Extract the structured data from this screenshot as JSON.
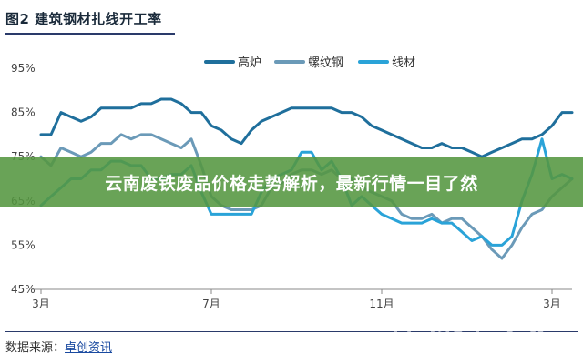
{
  "figure_title": "图2 建筑钢材扎线开工率",
  "banner_text": "云南废铁废品价格走势解析，最新行情一目了然",
  "source": {
    "prefix": "数据来源：",
    "name": "卓创资讯"
  },
  "watermark": {
    "brand": "回收",
    "sub": "HUISHOUREN"
  },
  "colors": {
    "高炉": "#1f6f9c",
    "螺纹钢": "#6b9ab8",
    "线材": "#2aa3d8",
    "banner": "#549640",
    "title_rule": "#2a3a6a"
  },
  "chart_data": {
    "type": "line",
    "title": "图2 建筑钢材扎线开工率",
    "ylim": [
      45,
      95
    ],
    "yticks": [
      "45%",
      "55%",
      "65%",
      "75%",
      "85%",
      "95%"
    ],
    "ytick_values": [
      45,
      55,
      65,
      75,
      85,
      95
    ],
    "xticks": [
      "3月",
      "7月",
      "11月",
      "3月"
    ],
    "xtick_index": [
      0,
      17,
      34,
      51
    ],
    "grid": false,
    "legend": "top-center",
    "series": [
      {
        "name": "高炉",
        "values": [
          80,
          80,
          85,
          84,
          83,
          84,
          86,
          86,
          86,
          86,
          87,
          87,
          88,
          88,
          87,
          85,
          85,
          82,
          81,
          79,
          78,
          81,
          83,
          84,
          85,
          86,
          86,
          86,
          86,
          86,
          85,
          85,
          84,
          82,
          81,
          80,
          79,
          78,
          77,
          77,
          78,
          77,
          77,
          76,
          75,
          76,
          77,
          78,
          79,
          79,
          80,
          82,
          85,
          85
        ]
      },
      {
        "name": "螺纹钢",
        "values": [
          75,
          73,
          77,
          76,
          75,
          76,
          78,
          78,
          80,
          79,
          80,
          80,
          79,
          78,
          77,
          79,
          73,
          66,
          64,
          63,
          63,
          63,
          64,
          68,
          69,
          71,
          72,
          72,
          71,
          72,
          70,
          70,
          68,
          67,
          66,
          65,
          62,
          61,
          61,
          62,
          60,
          61,
          61,
          59,
          57,
          54,
          52,
          55,
          59,
          62,
          63,
          66,
          68,
          70
        ]
      },
      {
        "name": "线材",
        "values": [
          64,
          66,
          68,
          70,
          70,
          72,
          72,
          74,
          74,
          73,
          73,
          70,
          70,
          71,
          71,
          73,
          67,
          62,
          62,
          62,
          62,
          62,
          67,
          70,
          71,
          72,
          76,
          76,
          72,
          74,
          70,
          64,
          66,
          64,
          62,
          61,
          60,
          60,
          60,
          61,
          60,
          60,
          58,
          56,
          57,
          55,
          55,
          57,
          65,
          71,
          79,
          70,
          71,
          70
        ]
      }
    ]
  }
}
